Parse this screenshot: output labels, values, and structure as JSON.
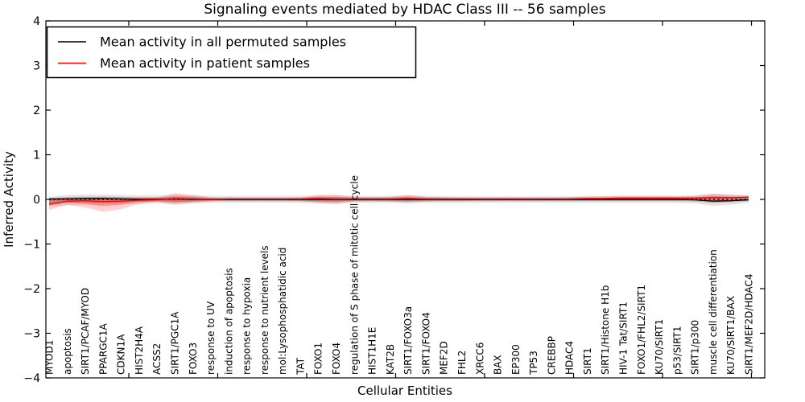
{
  "figure": {
    "title": "Signaling events mediated by HDAC Class III -- 56 samples",
    "xlabel": "Cellular Entities",
    "ylabel": "Inferred Activity"
  },
  "legend": {
    "position": "upper left",
    "items": [
      {
        "label": "Mean activity in all permuted samples",
        "color": "#000000"
      },
      {
        "label": "Mean activity in patient samples",
        "color": "#ff0000"
      }
    ]
  },
  "chart_data": {
    "type": "line",
    "title": "Signaling events mediated by HDAC Class III -- 56 samples",
    "xlabel": "Cellular Entities",
    "ylabel": "Inferred Activity",
    "ylim": [
      -4,
      4
    ],
    "yticks": [
      4,
      3,
      2,
      1,
      0,
      -1,
      -2,
      -3,
      -4
    ],
    "ytick_labels": [
      "4",
      "3",
      "2",
      "1",
      "0",
      "−1",
      "−2",
      "−3",
      "−4"
    ],
    "grid": false,
    "baseline": 0,
    "baseline_style": "dotted",
    "legend_position": "upper left",
    "categories": [
      "MYOD1",
      "apoptosis",
      "SIRT1/PCAF/MYOD",
      "PPARGC1A",
      "CDKN1A",
      "HIST2H4A",
      "ACSS2",
      "SIRT1/PGC1A",
      "FOXO3",
      "response to UV",
      "induction of apoptosis",
      "response to hypoxia",
      "response to nutrient levels",
      "mol:Lysophosphatidic acid",
      "TAT",
      "FOXO1",
      "FOXO4",
      "regulation of S phase of mitotic cell cycle",
      "HIST1H1E",
      "KAT2B",
      "SIRT1/FOXO3a",
      "SIRT1/FOXO4",
      "MEF2D",
      "FHL2",
      "XRCC6",
      "BAX",
      "EP300",
      "TP53",
      "CREBBP",
      "HDAC4",
      "SIRT1",
      "SIRT1/Histone H1b",
      "HIV-1 Tat/SIRT1",
      "FOXO1/FHL2/SIRT1",
      "KU70/SIRT1",
      "p53/SIRT1",
      "SIRT1/p300",
      "muscle cell differentiation",
      "KU70/SIRT1/BAX",
      "SIRT1/MEF2D/HDAC4"
    ],
    "series": [
      {
        "name": "Mean activity in all permuted samples",
        "color": "#000000",
        "style": "solid",
        "values": [
          0.01,
          0.01,
          0.02,
          0.02,
          0.01,
          0.0,
          0.0,
          0.01,
          0.0,
          0.0,
          0.0,
          0.0,
          0.0,
          0.0,
          0.0,
          0.0,
          0.0,
          0.0,
          0.0,
          0.0,
          0.0,
          0.0,
          0.0,
          0.0,
          0.0,
          0.0,
          0.0,
          0.0,
          0.0,
          0.0,
          0.0,
          0.0,
          0.0,
          0.0,
          0.0,
          0.0,
          -0.01,
          -0.04,
          -0.03,
          -0.01
        ]
      },
      {
        "name": "Mean activity in patient samples",
        "color": "#ff0000",
        "style": "solid",
        "values": [
          -0.11,
          -0.04,
          -0.03,
          -0.05,
          -0.04,
          -0.02,
          -0.01,
          0.02,
          0.01,
          0.0,
          0.01,
          0.01,
          0.01,
          0.01,
          0.01,
          0.02,
          0.01,
          0.01,
          0.01,
          0.01,
          0.02,
          0.01,
          0.01,
          0.01,
          0.01,
          0.01,
          0.01,
          0.01,
          0.01,
          0.01,
          0.02,
          0.02,
          0.03,
          0.03,
          0.03,
          0.03,
          0.03,
          0.04,
          0.04,
          0.05
        ]
      }
    ],
    "bands": [
      {
        "name": "permuted samples activity range",
        "color": "#000000",
        "opacity": 0.1,
        "high": [
          0.06,
          0.1,
          0.11,
          0.11,
          0.1,
          0.09,
          0.09,
          0.1,
          0.09,
          0.08,
          0.08,
          0.08,
          0.08,
          0.08,
          0.08,
          0.09,
          0.09,
          0.08,
          0.08,
          0.08,
          0.09,
          0.08,
          0.07,
          0.07,
          0.07,
          0.07,
          0.07,
          0.07,
          0.07,
          0.07,
          0.08,
          0.08,
          0.08,
          0.08,
          0.08,
          0.08,
          0.09,
          0.12,
          0.11,
          0.09
        ],
        "low": [
          -0.16,
          -0.13,
          -0.12,
          -0.12,
          -0.11,
          -0.1,
          -0.09,
          -0.1,
          -0.09,
          -0.08,
          -0.08,
          -0.08,
          -0.08,
          -0.08,
          -0.08,
          -0.09,
          -0.09,
          -0.08,
          -0.08,
          -0.08,
          -0.09,
          -0.08,
          -0.08,
          -0.08,
          -0.08,
          -0.08,
          -0.08,
          -0.08,
          -0.08,
          -0.08,
          -0.08,
          -0.08,
          -0.08,
          -0.08,
          -0.08,
          -0.08,
          -0.09,
          -0.15,
          -0.12,
          -0.08
        ]
      },
      {
        "name": "patient samples activity range",
        "color": "#ff0000",
        "opacity": 0.18,
        "high": [
          0.02,
          0.04,
          0.05,
          0.06,
          0.05,
          0.04,
          0.04,
          0.14,
          0.1,
          0.04,
          0.03,
          0.03,
          0.03,
          0.03,
          0.04,
          0.1,
          0.1,
          0.06,
          0.05,
          0.06,
          0.1,
          0.06,
          0.05,
          0.04,
          0.04,
          0.04,
          0.04,
          0.04,
          0.04,
          0.05,
          0.06,
          0.07,
          0.08,
          0.08,
          0.08,
          0.07,
          0.08,
          0.13,
          0.1,
          0.09
        ],
        "low": [
          -0.24,
          -0.12,
          -0.18,
          -0.28,
          -0.22,
          -0.1,
          -0.06,
          -0.12,
          -0.08,
          -0.04,
          -0.03,
          -0.03,
          -0.03,
          -0.03,
          -0.04,
          -0.08,
          -0.1,
          -0.05,
          -0.04,
          -0.05,
          -0.07,
          -0.05,
          -0.04,
          -0.04,
          -0.03,
          -0.03,
          -0.03,
          -0.03,
          -0.03,
          -0.03,
          -0.03,
          -0.03,
          -0.03,
          -0.03,
          -0.03,
          -0.03,
          -0.02,
          -0.05,
          -0.04,
          0.0
        ]
      }
    ]
  }
}
